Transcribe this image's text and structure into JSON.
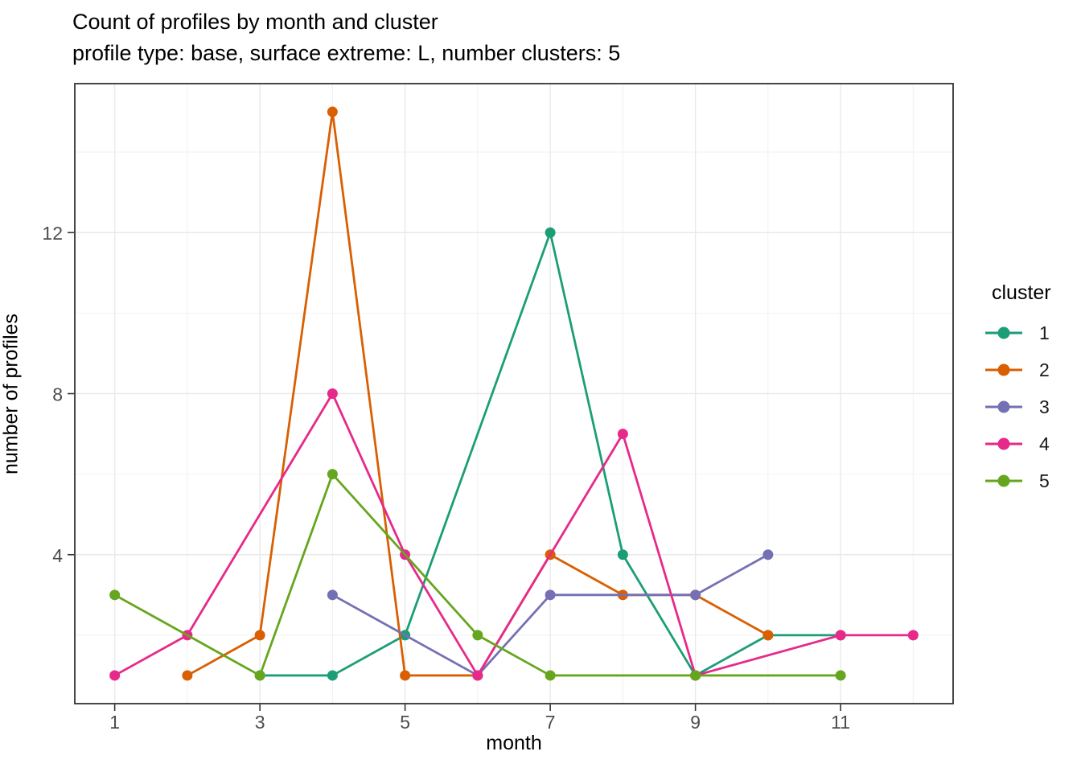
{
  "title": "Count of profiles by month and cluster",
  "subtitle": "profile type: base, surface extreme: L, number clusters: 5",
  "chart_data": {
    "type": "line",
    "title": "Count of profiles by month and cluster",
    "subtitle": "profile type: base, surface extreme: L, number clusters: 5",
    "xlabel": "month",
    "ylabel": "number of profiles",
    "xlim": [
      0.45,
      12.55
    ],
    "ylim": [
      0.3,
      15.7
    ],
    "x_major_ticks": [
      1,
      3,
      5,
      7,
      9,
      11
    ],
    "x_minor_ticks": [
      2,
      4,
      6,
      8,
      10,
      12
    ],
    "y_major_ticks": [
      4,
      8,
      12
    ],
    "y_minor_ticks": [
      2,
      6,
      10,
      14
    ],
    "grid": true,
    "legend_position": "right",
    "legend_title": "cluster",
    "series": [
      {
        "name": "1",
        "color": "#1B9E77",
        "points": [
          [
            3,
            1
          ],
          [
            4,
            1
          ],
          [
            5,
            2
          ],
          [
            7,
            12
          ],
          [
            8,
            4
          ],
          [
            9,
            1
          ],
          [
            10,
            2
          ],
          [
            11,
            2
          ]
        ]
      },
      {
        "name": "2",
        "color": "#D95F02",
        "points": [
          [
            2,
            1
          ],
          [
            3,
            2
          ],
          [
            4,
            15
          ],
          [
            5,
            1
          ],
          [
            6,
            1
          ],
          [
            7,
            4
          ],
          [
            8,
            3
          ],
          [
            9,
            3
          ],
          [
            10,
            2
          ]
        ]
      },
      {
        "name": "3",
        "color": "#7570B3",
        "points": [
          [
            4,
            3
          ],
          [
            6,
            1
          ],
          [
            7,
            3
          ],
          [
            9,
            3
          ],
          [
            10,
            4
          ]
        ]
      },
      {
        "name": "4",
        "color": "#E7298A",
        "points": [
          [
            1,
            1
          ],
          [
            2,
            2
          ],
          [
            4,
            8
          ],
          [
            5,
            4
          ],
          [
            6,
            1
          ],
          [
            8,
            7
          ],
          [
            9,
            1
          ],
          [
            11,
            2
          ],
          [
            12,
            2
          ]
        ]
      },
      {
        "name": "5",
        "color": "#66A61E",
        "points": [
          [
            1,
            3
          ],
          [
            3,
            1
          ],
          [
            4,
            6
          ],
          [
            6,
            2
          ],
          [
            7,
            1
          ],
          [
            9,
            1
          ],
          [
            11,
            1
          ]
        ]
      }
    ]
  },
  "style_colors": {
    "panel_border": "#333333",
    "grid_major": "#E9E9E9",
    "grid_minor": "#F2F2F2",
    "tick_mark": "#333333",
    "tick_label": "#4D4D4D"
  }
}
